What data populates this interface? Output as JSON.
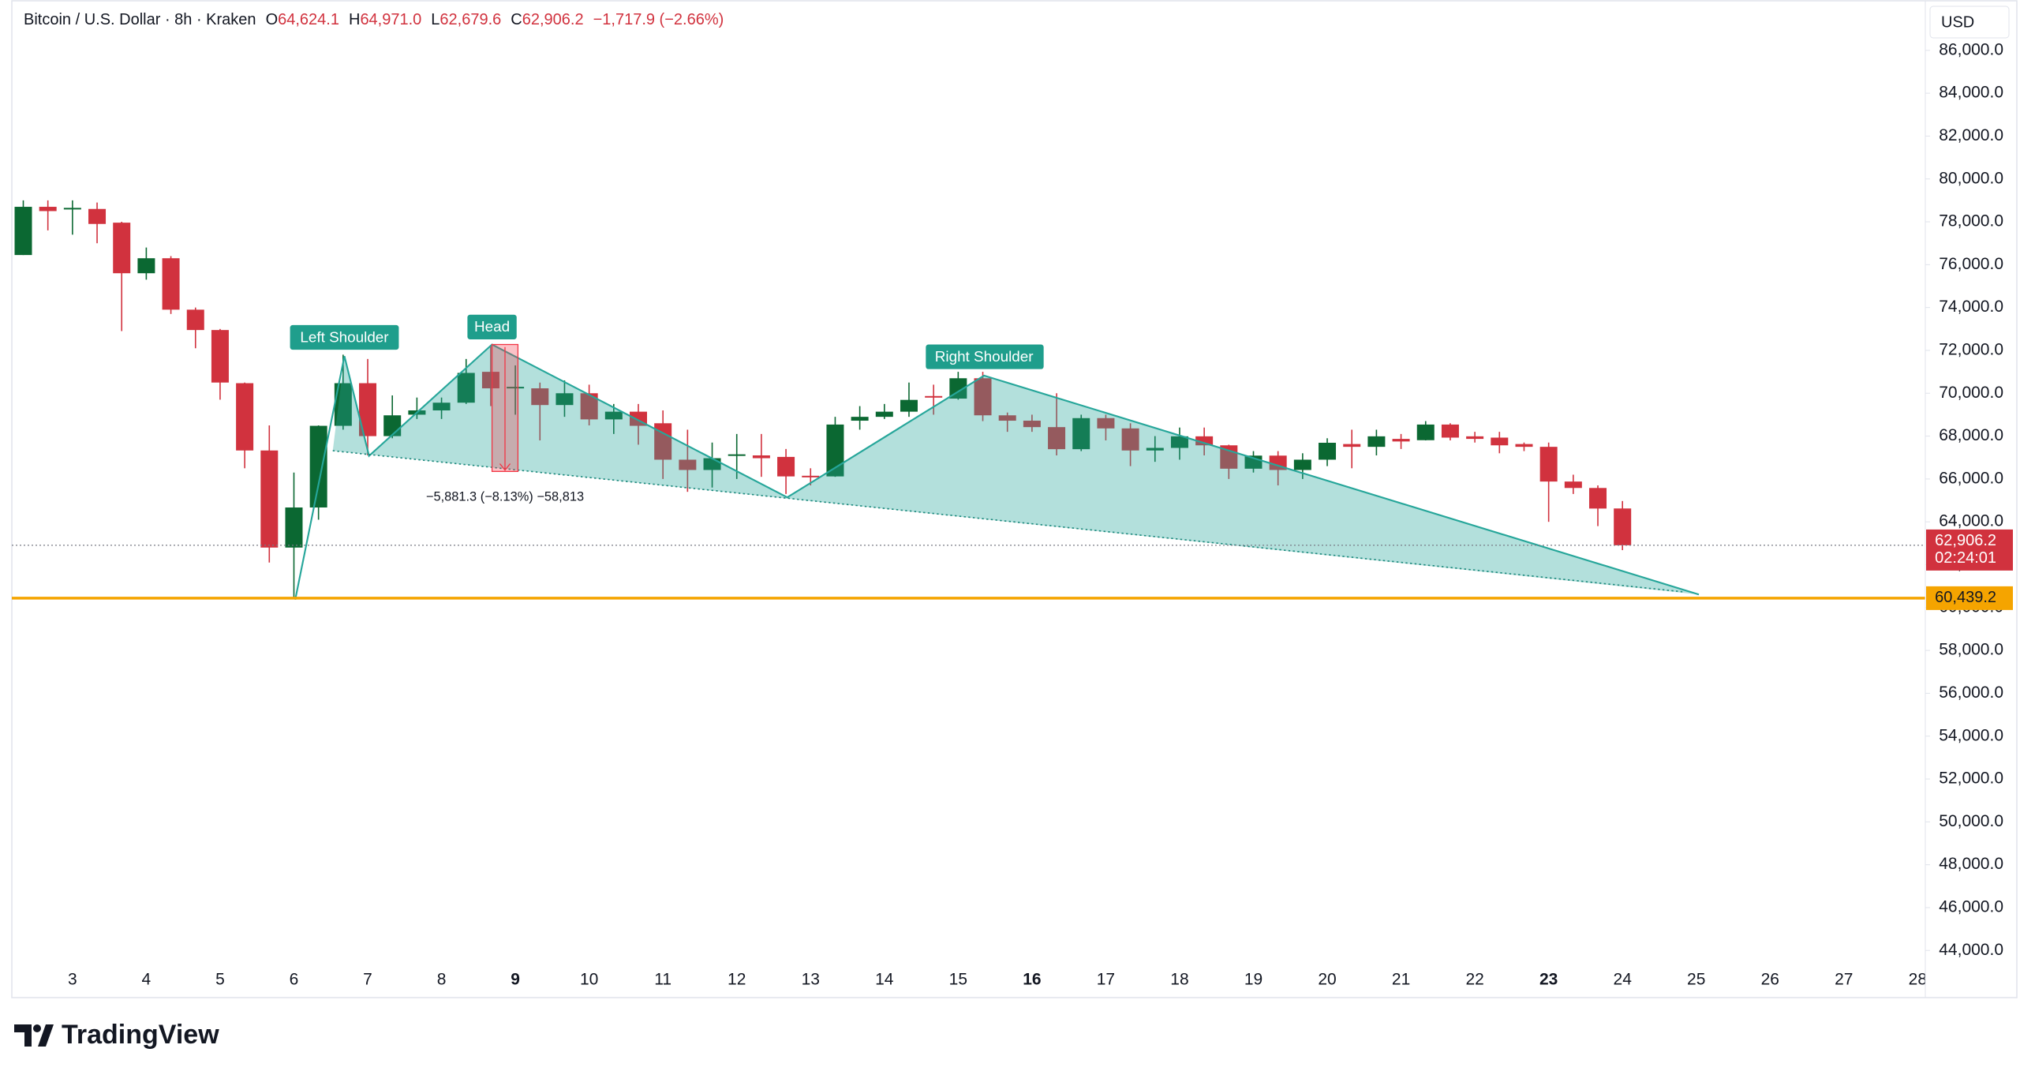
{
  "chart_data": {
    "type": "candlestick",
    "title": "Bitcoin / U.S. Dollar · 8h · Kraken",
    "ohlc_header": [
      {
        "key": "O",
        "value": "64,624.1"
      },
      {
        "key": "H",
        "value": "64,971.0"
      },
      {
        "key": "L",
        "value": "62,679.6"
      },
      {
        "key": "C",
        "value": "62,906.2"
      }
    ],
    "change": "−1,717.9 (−2.66%)",
    "currency": "USD",
    "up_color": "#0b6832",
    "down_color": "#d1323e",
    "categories": [
      null,
      null,
      null,
      null,
      null,
      null,
      null,
      null,
      null,
      null,
      null,
      null,
      null,
      null,
      null,
      null,
      null,
      null,
      null,
      null,
      null,
      null,
      null,
      null,
      null,
      null,
      null,
      null,
      null,
      null,
      null,
      null,
      null,
      null,
      null,
      null,
      null,
      null,
      null,
      null,
      null,
      null,
      null,
      null,
      null,
      null,
      null,
      null,
      null,
      null,
      null,
      null,
      null,
      null,
      null,
      null,
      null,
      null,
      null,
      null,
      null,
      null,
      null,
      null,
      null,
      null
    ],
    "open": [
      76450,
      78700,
      78600,
      78600,
      77960,
      75600,
      76300,
      73900,
      72950,
      70470,
      67330,
      62800,
      64670,
      68480,
      70470,
      68000,
      69000,
      69200,
      69560,
      71000,
      70280,
      70230,
      69450,
      70000,
      68780,
      69140,
      68600,
      66900,
      66420,
      67090,
      67100,
      67030,
      66150,
      66120,
      68720,
      68900,
      69140,
      69870,
      69750,
      70700,
      68970,
      68720,
      68420,
      67390,
      68840,
      68360,
      67330,
      67450,
      67990,
      67570,
      66480,
      67090,
      66420,
      66900,
      67630,
      67500,
      67870,
      67810,
      68540,
      67990,
      67930,
      67630,
      67500,
      65880,
      65580,
      64624.1
    ],
    "high": [
      79000,
      79000,
      79000,
      78900,
      78000,
      76800,
      76400,
      74000,
      73000,
      70500,
      68500,
      66300,
      68500,
      71800,
      71600,
      69900,
      69800,
      69800,
      71600,
      72200,
      71300,
      70500,
      70600,
      70400,
      69500,
      69500,
      69200,
      68300,
      67700,
      68100,
      68100,
      67400,
      66500,
      68900,
      69400,
      69500,
      70500,
      70400,
      71000,
      71000,
      69100,
      69000,
      70000,
      69000,
      69000,
      68600,
      68000,
      68400,
      68400,
      67600,
      67300,
      67300,
      67200,
      67900,
      68300,
      68300,
      68100,
      68700,
      68600,
      68200,
      68200,
      67700,
      67700,
      66200,
      65700,
      64971
    ],
    "low": [
      76450,
      77600,
      77400,
      77000,
      72900,
      75300,
      73700,
      72100,
      69700,
      66500,
      62100,
      60450,
      64100,
      68300,
      67100,
      67900,
      68800,
      68800,
      69500,
      69400,
      69000,
      67800,
      68900,
      68500,
      68100,
      67600,
      66000,
      65400,
      65600,
      66000,
      66100,
      65300,
      65700,
      66100,
      68300,
      68800,
      68900,
      69000,
      69700,
      68700,
      68200,
      68200,
      67100,
      67300,
      67800,
      66600,
      66800,
      66900,
      67100,
      66000,
      66300,
      65700,
      66000,
      66600,
      66500,
      67100,
      67400,
      67800,
      67800,
      67700,
      67200,
      67300,
      64000,
      65300,
      63800,
      62679.6
    ],
    "close": [
      78700,
      78500,
      78650,
      77900,
      75600,
      76300,
      73900,
      72950,
      70500,
      67330,
      62800,
      64670,
      68480,
      70470,
      68000,
      68970,
      69200,
      69560,
      70950,
      70230,
      70300,
      69450,
      70000,
      68780,
      69140,
      68480,
      66900,
      66420,
      66970,
      67150,
      66970,
      66120,
      66100,
      68540,
      68900,
      69140,
      69690,
      69800,
      70700,
      68970,
      68720,
      68420,
      67390,
      68840,
      68360,
      67330,
      67450,
      67990,
      67570,
      66480,
      67090,
      66420,
      66900,
      67690,
      67500,
      67990,
      67750,
      68540,
      67930,
      67870,
      67570,
      67500,
      65880,
      65580,
      64620,
      62906.2
    ],
    "ylim": [
      41800,
      88350
    ],
    "yticks": [
      {
        "value": 44000,
        "label": "44,000.0"
      },
      {
        "value": 46000,
        "label": "46,000.0"
      },
      {
        "value": 48000,
        "label": "48,000.0"
      },
      {
        "value": 50000,
        "label": "50,000.0"
      },
      {
        "value": 52000,
        "label": "52,000.0"
      },
      {
        "value": 54000,
        "label": "54,000.0"
      },
      {
        "value": 56000,
        "label": "56,000.0"
      },
      {
        "value": 58000,
        "label": "58,000.0"
      },
      {
        "value": 60000,
        "label": "60,000.0"
      },
      {
        "value": 62000,
        "label": "62,000.0"
      },
      {
        "value": 64000,
        "label": "64,000.0"
      },
      {
        "value": 66000,
        "label": "66,000.0"
      },
      {
        "value": 68000,
        "label": "68,000.0"
      },
      {
        "value": 70000,
        "label": "70,000.0"
      },
      {
        "value": 72000,
        "label": "72,000.0"
      },
      {
        "value": 74000,
        "label": "74,000.0"
      },
      {
        "value": 76000,
        "label": "76,000.0"
      },
      {
        "value": 78000,
        "label": "78,000.0"
      },
      {
        "value": 80000,
        "label": "80,000.0"
      },
      {
        "value": 82000,
        "label": "82,000.0"
      },
      {
        "value": 84000,
        "label": "84,000.0"
      },
      {
        "value": 86000,
        "label": "86,000.0"
      }
    ],
    "xticks": [
      3,
      4,
      5,
      6,
      7,
      8,
      9,
      10,
      11,
      12,
      13,
      14,
      15,
      16,
      17,
      18,
      19,
      20,
      21,
      22,
      23,
      24,
      25,
      26,
      27,
      28
    ],
    "bold_xticks": [
      9,
      16,
      23
    ],
    "current_price": {
      "value": 62906.2,
      "label": "62,906.2"
    },
    "countdown": "02:24:01",
    "horizontal_line": {
      "value": 60439.2,
      "label": "60,439.2",
      "color": "#f5a400"
    },
    "annotations": {
      "left_shoulder": "Left Shoulder",
      "head": "Head",
      "right_shoulder": "Right Shoulder",
      "measure": "−5,881.3 (−8.13%) −58,813"
    },
    "brand": "TradingView"
  }
}
